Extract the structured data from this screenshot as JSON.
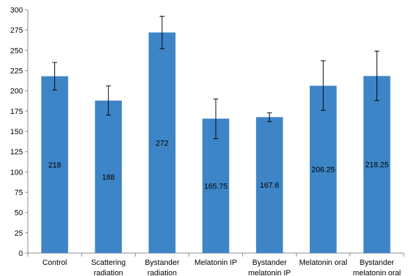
{
  "chart_data": {
    "type": "bar",
    "categories": [
      [
        "Control"
      ],
      [
        "Scattering",
        "radiation"
      ],
      [
        "Bystander",
        "radiation"
      ],
      [
        "Melatonin IP"
      ],
      [
        "Bystander",
        "melatonin IP"
      ],
      [
        "Melatonin oral"
      ],
      [
        "Bystander",
        "melatonin oral"
      ]
    ],
    "values": [
      218,
      188,
      272,
      165.75,
      167.6,
      206.25,
      218.25
    ],
    "data_labels": [
      "218",
      "188",
      "272",
      "165.75",
      "167.6",
      "206.25",
      "218.25"
    ],
    "error_bars": [
      {
        "low": 201,
        "high": 235
      },
      {
        "low": 170,
        "high": 206
      },
      {
        "low": 252,
        "high": 292
      },
      {
        "low": 141,
        "high": 190
      },
      {
        "low": 162,
        "high": 173
      },
      {
        "low": 176,
        "high": 237
      },
      {
        "low": 188,
        "high": 249
      }
    ],
    "yticks": [
      "0",
      "25",
      "50",
      "75",
      "100",
      "125",
      "150",
      "175",
      "200",
      "225",
      "250",
      "275",
      "300"
    ],
    "ylim": [
      0,
      300
    ],
    "grid": false,
    "legend": "none",
    "colors": {
      "bar": "#3d85c6",
      "axis": "#888888",
      "error": "#000000"
    }
  }
}
